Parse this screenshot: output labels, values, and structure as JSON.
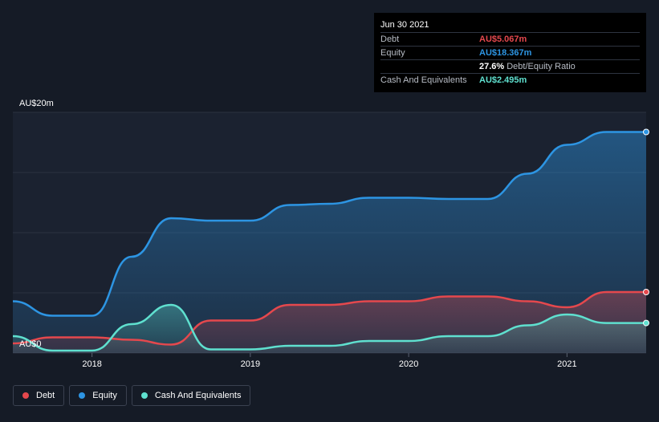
{
  "tooltip": {
    "date": "Jun 30 2021",
    "debt_label": "Debt",
    "debt_value": "AU$5.067m",
    "equity_label": "Equity",
    "equity_value": "AU$18.367m",
    "ratio_value": "27.6%",
    "ratio_label": "Debt/Equity Ratio",
    "cash_label": "Cash And Equivalents",
    "cash_value": "AU$2.495m"
  },
  "colors": {
    "debt": "#e5484d",
    "equity": "#2d95e3",
    "cash": "#5fe0cf",
    "background": "#151b26"
  },
  "legend": [
    {
      "label": "Debt",
      "color": "#e5484d"
    },
    {
      "label": "Equity",
      "color": "#2d95e3"
    },
    {
      "label": "Cash And Equivalents",
      "color": "#5fe0cf"
    }
  ],
  "chart_data": {
    "type": "area",
    "x_ticks": [
      "2018",
      "2019",
      "2020",
      "2021"
    ],
    "y_tick_labels": [
      "AU$20m",
      "AU$0"
    ],
    "ylim": [
      0,
      20
    ],
    "xlim": [
      2017.5,
      2021.5
    ],
    "grid": true,
    "legend_position": "bottom-left",
    "series": [
      {
        "name": "Debt",
        "x": [
          2017.5,
          2017.75,
          2018.0,
          2018.25,
          2018.5,
          2018.75,
          2019.0,
          2019.25,
          2019.5,
          2019.75,
          2020.0,
          2020.25,
          2020.5,
          2020.75,
          2021.0,
          2021.25,
          2021.5
        ],
        "values": [
          0.8,
          1.3,
          1.3,
          1.1,
          0.7,
          2.7,
          2.7,
          4.0,
          4.0,
          4.3,
          4.3,
          4.7,
          4.7,
          4.3,
          3.8,
          5.067,
          5.067
        ]
      },
      {
        "name": "Equity",
        "x": [
          2017.5,
          2017.75,
          2018.0,
          2018.25,
          2018.5,
          2018.75,
          2019.0,
          2019.25,
          2019.5,
          2019.75,
          2020.0,
          2020.25,
          2020.5,
          2020.75,
          2021.0,
          2021.25,
          2021.5
        ],
        "values": [
          4.3,
          3.1,
          3.1,
          8.0,
          11.2,
          11.0,
          11.0,
          12.3,
          12.4,
          12.9,
          12.9,
          12.8,
          12.8,
          14.9,
          17.3,
          18.367,
          18.367
        ]
      },
      {
        "name": "Cash And Equivalents",
        "x": [
          2017.5,
          2017.75,
          2018.0,
          2018.25,
          2018.5,
          2018.75,
          2019.0,
          2019.25,
          2019.5,
          2019.75,
          2020.0,
          2020.25,
          2020.5,
          2020.75,
          2021.0,
          2021.25,
          2021.5
        ],
        "values": [
          1.4,
          0.2,
          0.2,
          2.4,
          4.0,
          0.3,
          0.3,
          0.6,
          0.6,
          1.0,
          1.0,
          1.4,
          1.4,
          2.3,
          3.2,
          2.495,
          2.495
        ]
      }
    ]
  }
}
